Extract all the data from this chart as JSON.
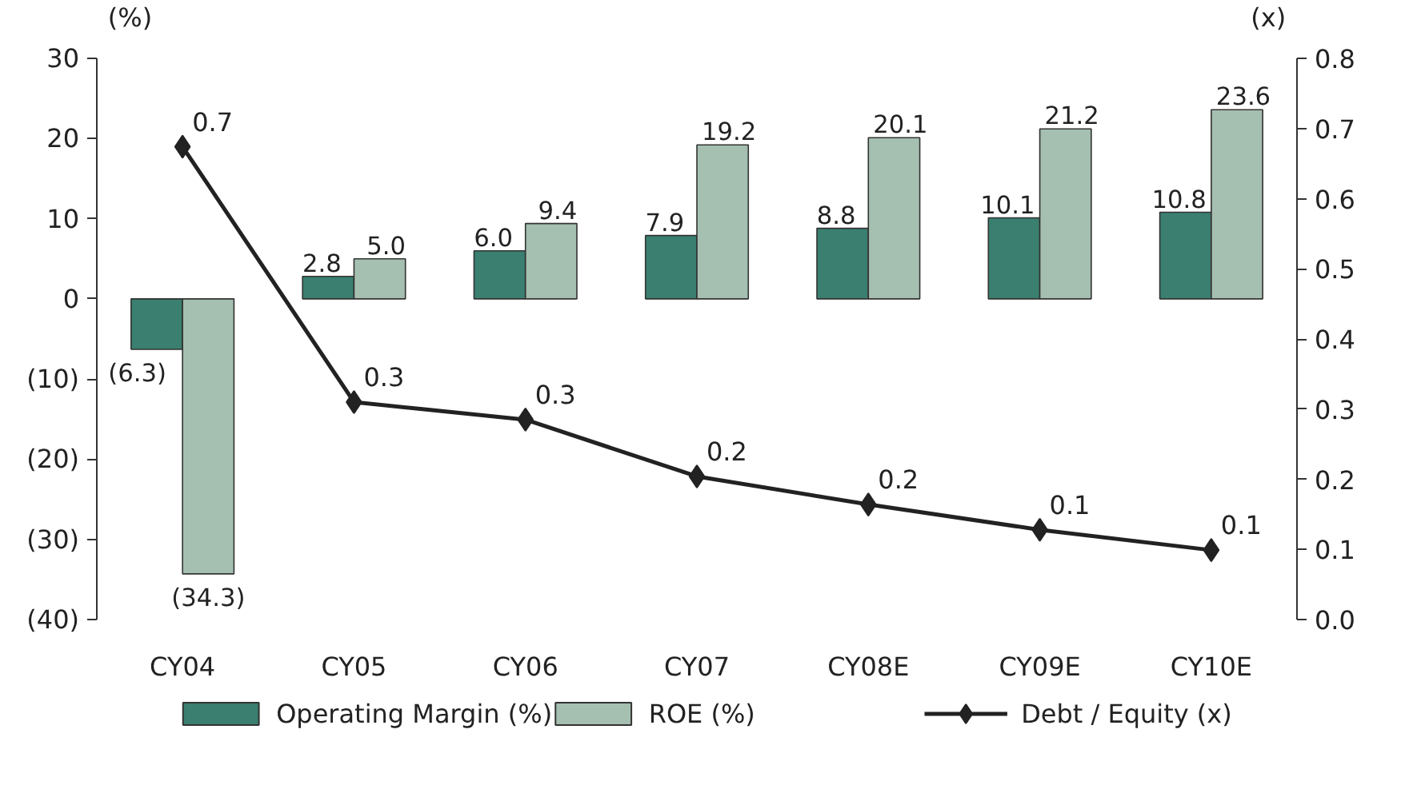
{
  "chart_data": {
    "type": "bar",
    "categories": [
      "CY04",
      "CY05",
      "CY06",
      "CY07",
      "CY08E",
      "CY09E",
      "CY10E"
    ],
    "ylabel": "(%)",
    "y2label": "(x)",
    "series": [
      {
        "name": "Operating Margin (%)",
        "color": "#3a7f6f",
        "values": [
          -6.3,
          2.8,
          6.0,
          7.9,
          8.8,
          10.1,
          10.8
        ],
        "value_labels": [
          "(6.3)",
          "2.8",
          "6.0",
          "7.9",
          "8.8",
          "10.1",
          "10.8"
        ]
      },
      {
        "name": "ROE (%)",
        "color": "#a5bfb0",
        "values": [
          -34.3,
          5.0,
          9.4,
          19.2,
          20.1,
          21.2,
          23.6
        ],
        "value_labels": [
          "(34.3)",
          "5.0",
          "9.4",
          "19.2",
          "20.1",
          "21.2",
          "23.6"
        ]
      },
      {
        "name": "Debt / Equity (x)",
        "type": "line",
        "axis": "y2",
        "color": "#222222",
        "marker": "diamond",
        "values": [
          0.674,
          0.31,
          0.285,
          0.204,
          0.164,
          0.128,
          0.099
        ],
        "value_labels": [
          "0.7",
          "0.3",
          "0.3",
          "0.2",
          "0.2",
          "0.1",
          "0.1"
        ]
      }
    ],
    "ylim": [
      -40,
      30
    ],
    "yticks": [
      {
        "value": 30,
        "label": "30"
      },
      {
        "value": 20,
        "label": "20"
      },
      {
        "value": 10,
        "label": "10"
      },
      {
        "value": 0,
        "label": "0"
      },
      {
        "value": -10,
        "label": "(10)"
      },
      {
        "value": -20,
        "label": "(20)"
      },
      {
        "value": -30,
        "label": "(30)"
      },
      {
        "value": -40,
        "label": "(40)"
      }
    ],
    "y2lim": [
      0,
      0.8
    ],
    "y2ticks": [
      {
        "value": 0,
        "label": "0.0"
      },
      {
        "value": 0.1,
        "label": "0.1"
      },
      {
        "value": 0.2,
        "label": "0.2"
      },
      {
        "value": 0.3,
        "label": "0.3"
      },
      {
        "value": 0.4,
        "label": "0.4"
      },
      {
        "value": 0.5,
        "label": "0.5"
      },
      {
        "value": 0.6,
        "label": "0.6"
      },
      {
        "value": 0.7,
        "label": "0.7"
      },
      {
        "value": 0.8,
        "label": "0.8"
      }
    ],
    "grid": false,
    "legend": "bottom"
  }
}
